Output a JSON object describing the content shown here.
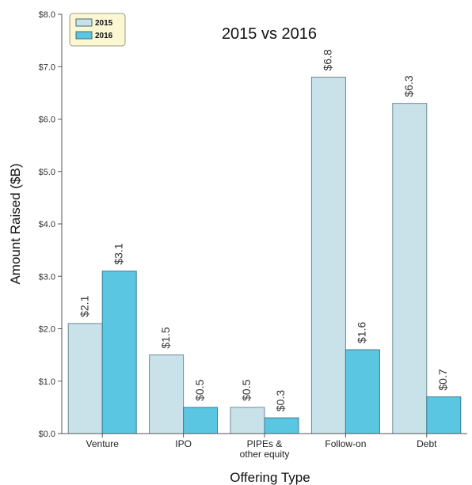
{
  "chart_data": {
    "type": "bar",
    "title": "2015 vs 2016",
    "xlabel": "Offering Type",
    "ylabel": "Amount Raised ($B)",
    "categories": [
      [
        "Venture"
      ],
      [
        "IPO"
      ],
      [
        "PIPEs &",
        "other equity"
      ],
      [
        "Follow-on"
      ],
      [
        "Debt"
      ]
    ],
    "series": [
      {
        "name": "2015",
        "values": [
          2.1,
          1.5,
          0.5,
          6.8,
          6.3
        ],
        "labels": [
          "$2.1",
          "$1.5",
          "$0.5",
          "$6.8",
          "$6.3"
        ],
        "color": "#c9e2ea"
      },
      {
        "name": "2016",
        "values": [
          3.1,
          0.5,
          0.3,
          1.6,
          0.7
        ],
        "labels": [
          "$3.1",
          "$0.5",
          "$0.3",
          "$1.6",
          "$0.7"
        ],
        "color": "#5bc6e2"
      }
    ],
    "ylim": [
      0,
      8
    ],
    "yticks": [
      0,
      1,
      2,
      3,
      4,
      5,
      6,
      7,
      8
    ],
    "ytick_labels": [
      "$0.0",
      "$1.0",
      "$2.0",
      "$3.0",
      "$4.0",
      "$5.0",
      "$6.0",
      "$7.0",
      "$8.0"
    ],
    "legend_position": "top-left",
    "grid": false
  }
}
